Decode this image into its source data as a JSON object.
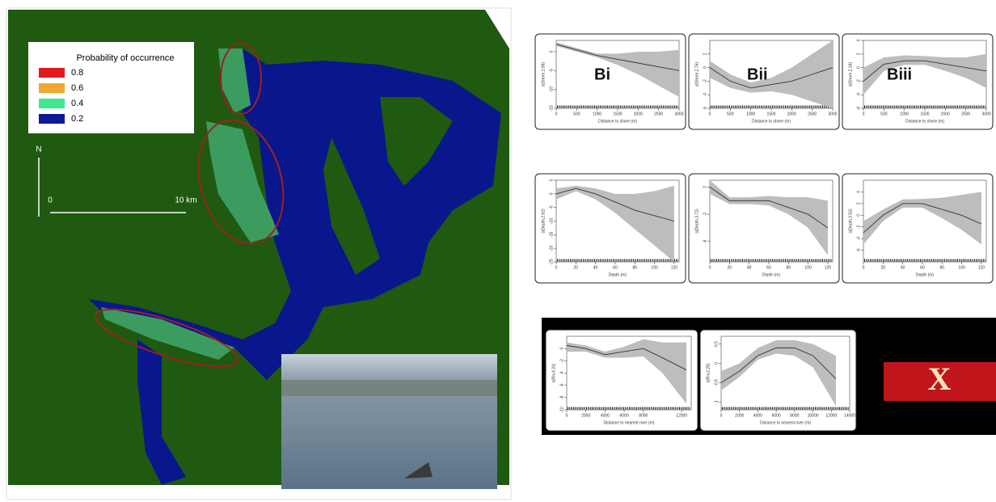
{
  "map": {
    "legend": {
      "title": "Probability of occurrence",
      "items": [
        {
          "label": 0.8,
          "color": "#e31a1c"
        },
        {
          "label": 0.6,
          "color": "#f0a830"
        },
        {
          "label": 0.4,
          "color": "#3ee892"
        },
        {
          "label": 0.2,
          "color": "#0c1a9a"
        }
      ]
    },
    "north": "N",
    "scale_bar": {
      "start": 0,
      "end_label": "10 km"
    }
  },
  "panel_tags": [
    "Bi",
    "Bii",
    "Biii"
  ],
  "excluded_mark": "X",
  "panels": [
    {
      "xlabel": "Distance to shore (m)",
      "ylabel": "s(Shore,1.96)",
      "xlim": [
        0,
        3000
      ],
      "xticks": [
        0,
        500,
        1000,
        1500,
        2000,
        2500,
        3000
      ],
      "ylim": [
        -15,
        3
      ],
      "yticks": [
        0,
        -5,
        -10,
        -15
      ],
      "x": [
        0,
        500,
        1000,
        1500,
        2000,
        2500,
        3000
      ],
      "fit": [
        2,
        0.5,
        -1,
        -2,
        -3,
        -4,
        -5
      ],
      "lower": [
        1.5,
        0,
        -1.5,
        -3.5,
        -6,
        -9,
        -12
      ],
      "upper": [
        2.5,
        1,
        -0.5,
        -0.5,
        0,
        0,
        0.5
      ]
    },
    {
      "xlabel": "Distance to shore (m)",
      "ylabel": "s(Shore,2.76)",
      "xlim": [
        0,
        3000
      ],
      "xticks": [
        0,
        500,
        1000,
        1500,
        2000,
        2500,
        3000
      ],
      "ylim": [
        -6,
        4
      ],
      "yticks": [
        -6,
        -4,
        -2,
        0,
        2
      ],
      "x": [
        0,
        500,
        1000,
        1500,
        2000,
        2500,
        3000
      ],
      "fit": [
        0,
        -2,
        -3,
        -2.5,
        -2,
        -1,
        0
      ],
      "lower": [
        -1.5,
        -3,
        -3.7,
        -3.5,
        -4,
        -5,
        -6
      ],
      "upper": [
        1,
        -1,
        -2.2,
        -1.5,
        0,
        2,
        4
      ]
    },
    {
      "xlabel": "Distance to shore (m)",
      "ylabel": "s(Shore,2.34)",
      "xlim": [
        0,
        3000
      ],
      "xticks": [
        0,
        500,
        1000,
        1500,
        2000,
        2500,
        3000
      ],
      "ylim": [
        -6,
        4
      ],
      "yticks": [
        -6,
        -4,
        -2,
        0,
        2,
        4
      ],
      "x": [
        0,
        500,
        1000,
        1500,
        2000,
        2500,
        3000
      ],
      "fit": [
        -2,
        0.5,
        1,
        1,
        0.5,
        0,
        -0.5
      ],
      "lower": [
        -4,
        -0.5,
        0.4,
        0.4,
        -0.5,
        -1.5,
        -3
      ],
      "upper": [
        0,
        1.5,
        1.8,
        1.7,
        1.5,
        1.5,
        2
      ]
    },
    {
      "xlabel": "Depth (m)",
      "ylabel": "s(Depth,2.92)",
      "xlim": [
        0,
        125
      ],
      "xticks": [
        0,
        20,
        40,
        60,
        80,
        100,
        120
      ],
      "ylim": [
        -25,
        5
      ],
      "yticks": [
        5,
        0,
        -5,
        -10,
        -15,
        -20,
        -25
      ],
      "x": [
        0,
        20,
        40,
        60,
        80,
        100,
        120
      ],
      "fit": [
        0,
        2,
        0,
        -3,
        -6,
        -8,
        -10
      ],
      "lower": [
        -2,
        1,
        -2,
        -7,
        -13,
        -19,
        -25
      ],
      "upper": [
        2,
        3,
        2,
        0,
        0,
        1,
        3
      ]
    },
    {
      "xlabel": "Depth (m)",
      "ylabel": "s(Depth,3.72)",
      "xlim": [
        0,
        125
      ],
      "xticks": [
        0,
        20,
        40,
        60,
        80,
        100,
        120
      ],
      "ylim": [
        -9,
        3
      ],
      "yticks": [
        2,
        -2,
        -6
      ],
      "x": [
        0,
        20,
        40,
        60,
        80,
        100,
        120
      ],
      "fit": [
        2,
        0,
        0,
        0,
        -1,
        -2,
        -4
      ],
      "lower": [
        1,
        -0.5,
        -0.5,
        -0.7,
        -2,
        -4,
        -8
      ],
      "upper": [
        3,
        0.5,
        0.5,
        0.7,
        0.5,
        0.5,
        0
      ]
    },
    {
      "xlabel": "Depth (m)",
      "ylabel": "s(Depth,3.52)",
      "xlim": [
        0,
        125
      ],
      "xticks": [
        0,
        20,
        40,
        60,
        80,
        100,
        120
      ],
      "ylim": [
        -8,
        6
      ],
      "yticks": [
        -6,
        -4,
        -2,
        0,
        2,
        4
      ],
      "x": [
        0,
        20,
        40,
        60,
        80,
        100,
        120
      ],
      "fit": [
        -3,
        0,
        2,
        2,
        1,
        0,
        -1.5
      ],
      "lower": [
        -5,
        -1,
        1.3,
        1.3,
        -0.5,
        -2.5,
        -5
      ],
      "upper": [
        -1,
        1,
        2.7,
        2.8,
        3,
        3.5,
        4
      ]
    },
    {
      "xlabel": "Distance to nearest river (m)",
      "ylabel": "s(Riv,4.31)",
      "xlim": [
        0,
        13000
      ],
      "xticks": [
        0,
        2000,
        4000,
        6000,
        8000,
        12000
      ],
      "ylim": [
        -10,
        2
      ],
      "yticks": [
        0,
        -2,
        -4,
        -6,
        -8,
        -10
      ],
      "x": [
        0,
        2000,
        4000,
        6000,
        8000,
        10000,
        12500
      ],
      "fit": [
        0.5,
        0,
        -1,
        -0.5,
        0,
        -1.5,
        -3.5
      ],
      "lower": [
        -0.5,
        -0.5,
        -1.5,
        -1.5,
        -1.3,
        -4,
        -9
      ],
      "upper": [
        1,
        0.5,
        -0.5,
        0.3,
        1.5,
        1,
        1
      ]
    },
    {
      "xlabel": "Distance to nearest river (m)",
      "ylabel": "s(Riv,2.28)",
      "xlim": [
        0,
        14000
      ],
      "xticks": [
        0,
        2000,
        4000,
        6000,
        8000,
        10000,
        12000,
        14000
      ],
      "ylim": [
        -1.2,
        0.7
      ],
      "yticks": [
        0.5,
        0,
        -0.5,
        -1
      ],
      "x": [
        0,
        2000,
        4000,
        6000,
        8000,
        10000,
        12500
      ],
      "fit": [
        -0.5,
        -0.2,
        0.2,
        0.4,
        0.4,
        0.2,
        -0.4
      ],
      "lower": [
        -0.7,
        -0.35,
        0.1,
        0.25,
        0.2,
        -0.1,
        -1.1
      ],
      "upper": [
        -0.2,
        0,
        0.4,
        0.6,
        0.6,
        0.5,
        0.2
      ]
    }
  ]
}
